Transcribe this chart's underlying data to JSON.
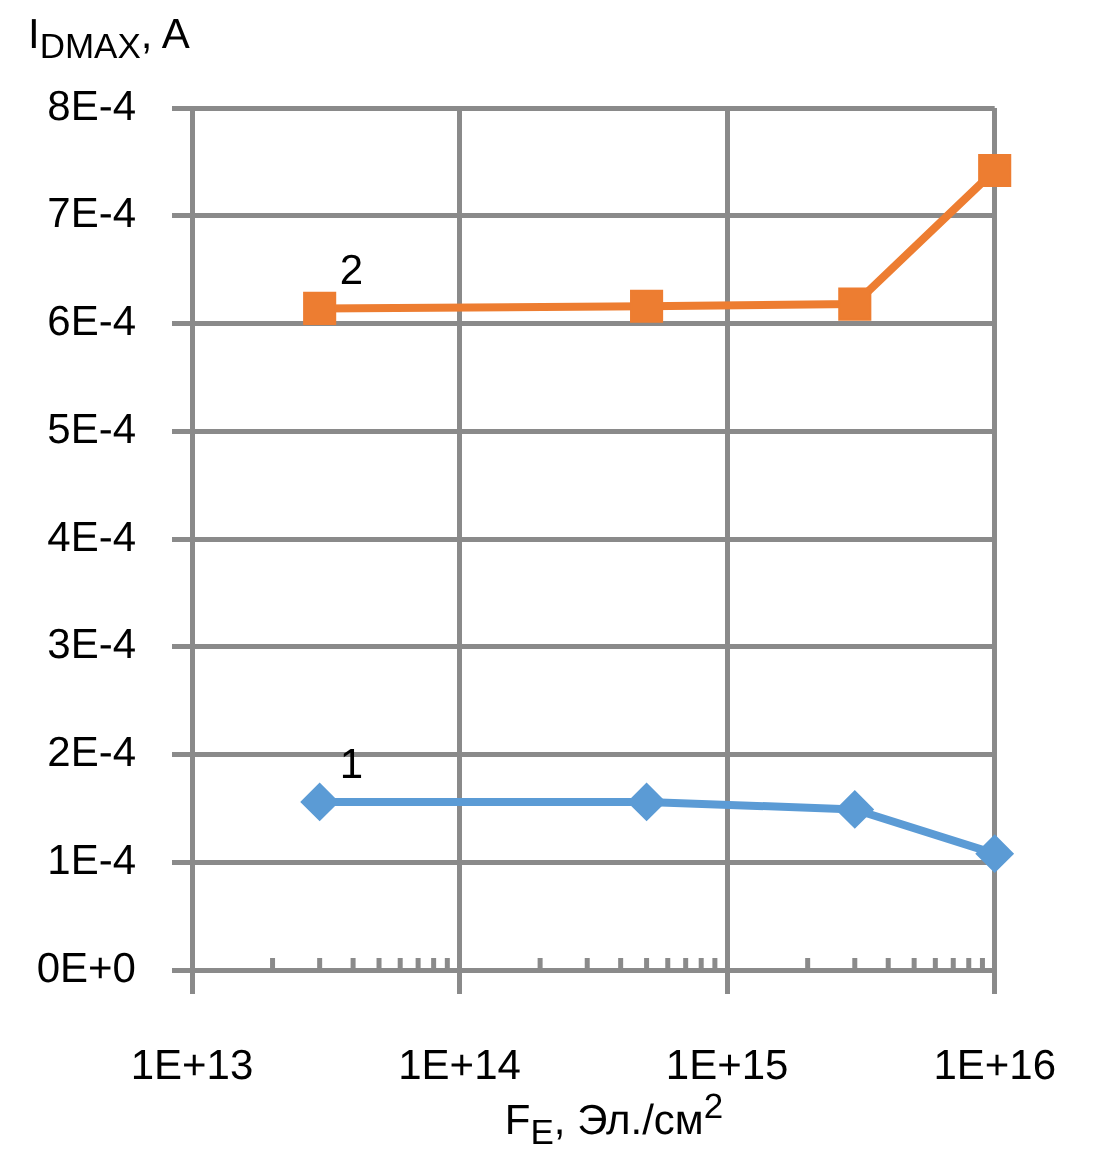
{
  "chart_data": {
    "type": "line",
    "xlabel": "F$_{E}$, Эл./см$^{2}$",
    "ylabel": "I$_{DMAX}$, A",
    "x": [
      30000000000000.0,
      500000000000000.0,
      3000000000000000.0,
      1e+16
    ],
    "series": [
      {
        "name": "1",
        "color": "#5b9bd5",
        "marker": "diamond",
        "values": [
          0.000156,
          0.000156,
          0.000149,
          0.000108
        ]
      },
      {
        "name": "2",
        "color": "#ed7d31",
        "marker": "square",
        "values": [
          0.000614,
          0.000616,
          0.000618,
          0.000742
        ]
      }
    ],
    "log": "x",
    "xlim": [
      10000000000000.0,
      1e+16
    ],
    "xticks": [
      {
        "value": 10000000000000.0,
        "label": "1E+13"
      },
      {
        "value": 20000000000000.0,
        "label": null
      },
      {
        "value": 30000000000000.0,
        "label": null
      },
      {
        "value": 40000000000000.0,
        "label": null
      },
      {
        "value": 50000000000000.0,
        "label": null
      },
      {
        "value": 60000000000000.0,
        "label": null
      },
      {
        "value": 70000000000000.0,
        "label": null
      },
      {
        "value": 80000000000000.0,
        "label": null
      },
      {
        "value": 90000000000000.0,
        "label": null
      },
      {
        "value": 100000000000000.0,
        "label": "1E+14"
      },
      {
        "value": 200000000000000.0,
        "label": null
      },
      {
        "value": 300000000000000.0,
        "label": null
      },
      {
        "value": 400000000000000.0,
        "label": null
      },
      {
        "value": 500000000000000.0,
        "label": null
      },
      {
        "value": 600000000000000.0,
        "label": null
      },
      {
        "value": 700000000000000.0,
        "label": null
      },
      {
        "value": 800000000000000.0,
        "label": null
      },
      {
        "value": 900000000000000.0,
        "label": null
      },
      {
        "value": 1000000000000000.0,
        "label": "1E+15"
      },
      {
        "value": 2000000000000000.0,
        "label": null
      },
      {
        "value": 3000000000000000.0,
        "label": null
      },
      {
        "value": 4000000000000000.0,
        "label": null
      },
      {
        "value": 5000000000000000.0,
        "label": null
      },
      {
        "value": 6000000000000000.0,
        "label": null
      },
      {
        "value": 7000000000000000.0,
        "label": null
      },
      {
        "value": 8000000000000000.0,
        "label": null
      },
      {
        "value": 9000000000000000.0,
        "label": null
      },
      {
        "value": 1e+16,
        "label": "1E+16"
      }
    ],
    "ylim": [
      0,
      0.0008
    ],
    "yticks": [
      {
        "value": 0,
        "label": "0E+0"
      },
      {
        "value": 0.0001,
        "label": "1E-4"
      },
      {
        "value": 0.0002,
        "label": "2E-4"
      },
      {
        "value": 0.0003,
        "label": "3E-4"
      },
      {
        "value": 0.0004,
        "label": "4E-4"
      },
      {
        "value": 0.0005,
        "label": "5E-4"
      },
      {
        "value": 0.0006,
        "label": "6E-4"
      },
      {
        "value": 0.0007,
        "label": "7E-4"
      },
      {
        "value": 0.0008,
        "label": "8E-4"
      }
    ],
    "grid": true
  }
}
